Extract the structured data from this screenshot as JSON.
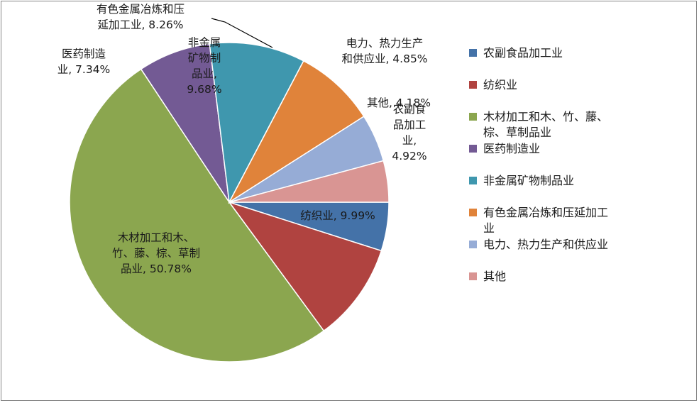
{
  "chart_data": {
    "type": "pie",
    "title": "",
    "legend_position": "right",
    "slices": [
      {
        "name": "农副食品加工业",
        "value": 4.92,
        "color": "#4472a8",
        "label_lines": [
          "农副食",
          "品加工",
          "业,",
          "4.92%"
        ]
      },
      {
        "name": "纺织业",
        "value": 9.99,
        "color": "#b04340",
        "label_lines": [
          "纺织业, 9.99%"
        ]
      },
      {
        "name": "木材加工和木、竹、藤、棕、草制品业",
        "value": 50.78,
        "color": "#8ba64f",
        "label_lines": [
          "木材加工和木、",
          "竹、藤、棕、草制",
          "品业, 50.78%"
        ]
      },
      {
        "name": "医药制造业",
        "value": 7.34,
        "color": "#735a94",
        "label_lines": [
          "医药制造",
          "业, 7.34%"
        ]
      },
      {
        "name": "非金属矿物制品业",
        "value": 9.68,
        "color": "#3f97ae",
        "label_lines": [
          "非金属",
          "矿物制",
          "品业,",
          "9.68%"
        ]
      },
      {
        "name": "有色金属冶炼和压延加工业",
        "value": 8.26,
        "color": "#e0833a",
        "label_lines": [
          "有色金属冶炼和压",
          "延加工业, 8.26%"
        ]
      },
      {
        "name": "电力、热力生产和供应业",
        "value": 4.85,
        "color": "#96acd6",
        "label_lines": [
          "电力、热力生产",
          "和供应业, 4.85%"
        ]
      },
      {
        "name": "其他",
        "value": 4.18,
        "color": "#d99593",
        "label_lines": [
          "其他, 4.18%"
        ]
      }
    ],
    "legend": [
      {
        "lines": [
          "农副食品加工业"
        ],
        "color": "#4472a8"
      },
      {
        "lines": [
          "纺织业"
        ],
        "color": "#b04340"
      },
      {
        "lines": [
          "木材加工和木、竹、藤、",
          "棕、草制品业"
        ],
        "color": "#8ba64f"
      },
      {
        "lines": [
          "医药制造业"
        ],
        "color": "#735a94"
      },
      {
        "lines": [
          "非金属矿物制品业"
        ],
        "color": "#3f97ae"
      },
      {
        "lines": [
          "有色金属冶炼和压延加工",
          "业"
        ],
        "color": "#e0833a"
      },
      {
        "lines": [
          "电力、热力生产和供应业"
        ],
        "color": "#96acd6"
      },
      {
        "lines": [
          "其他"
        ],
        "color": "#d99593"
      }
    ]
  }
}
